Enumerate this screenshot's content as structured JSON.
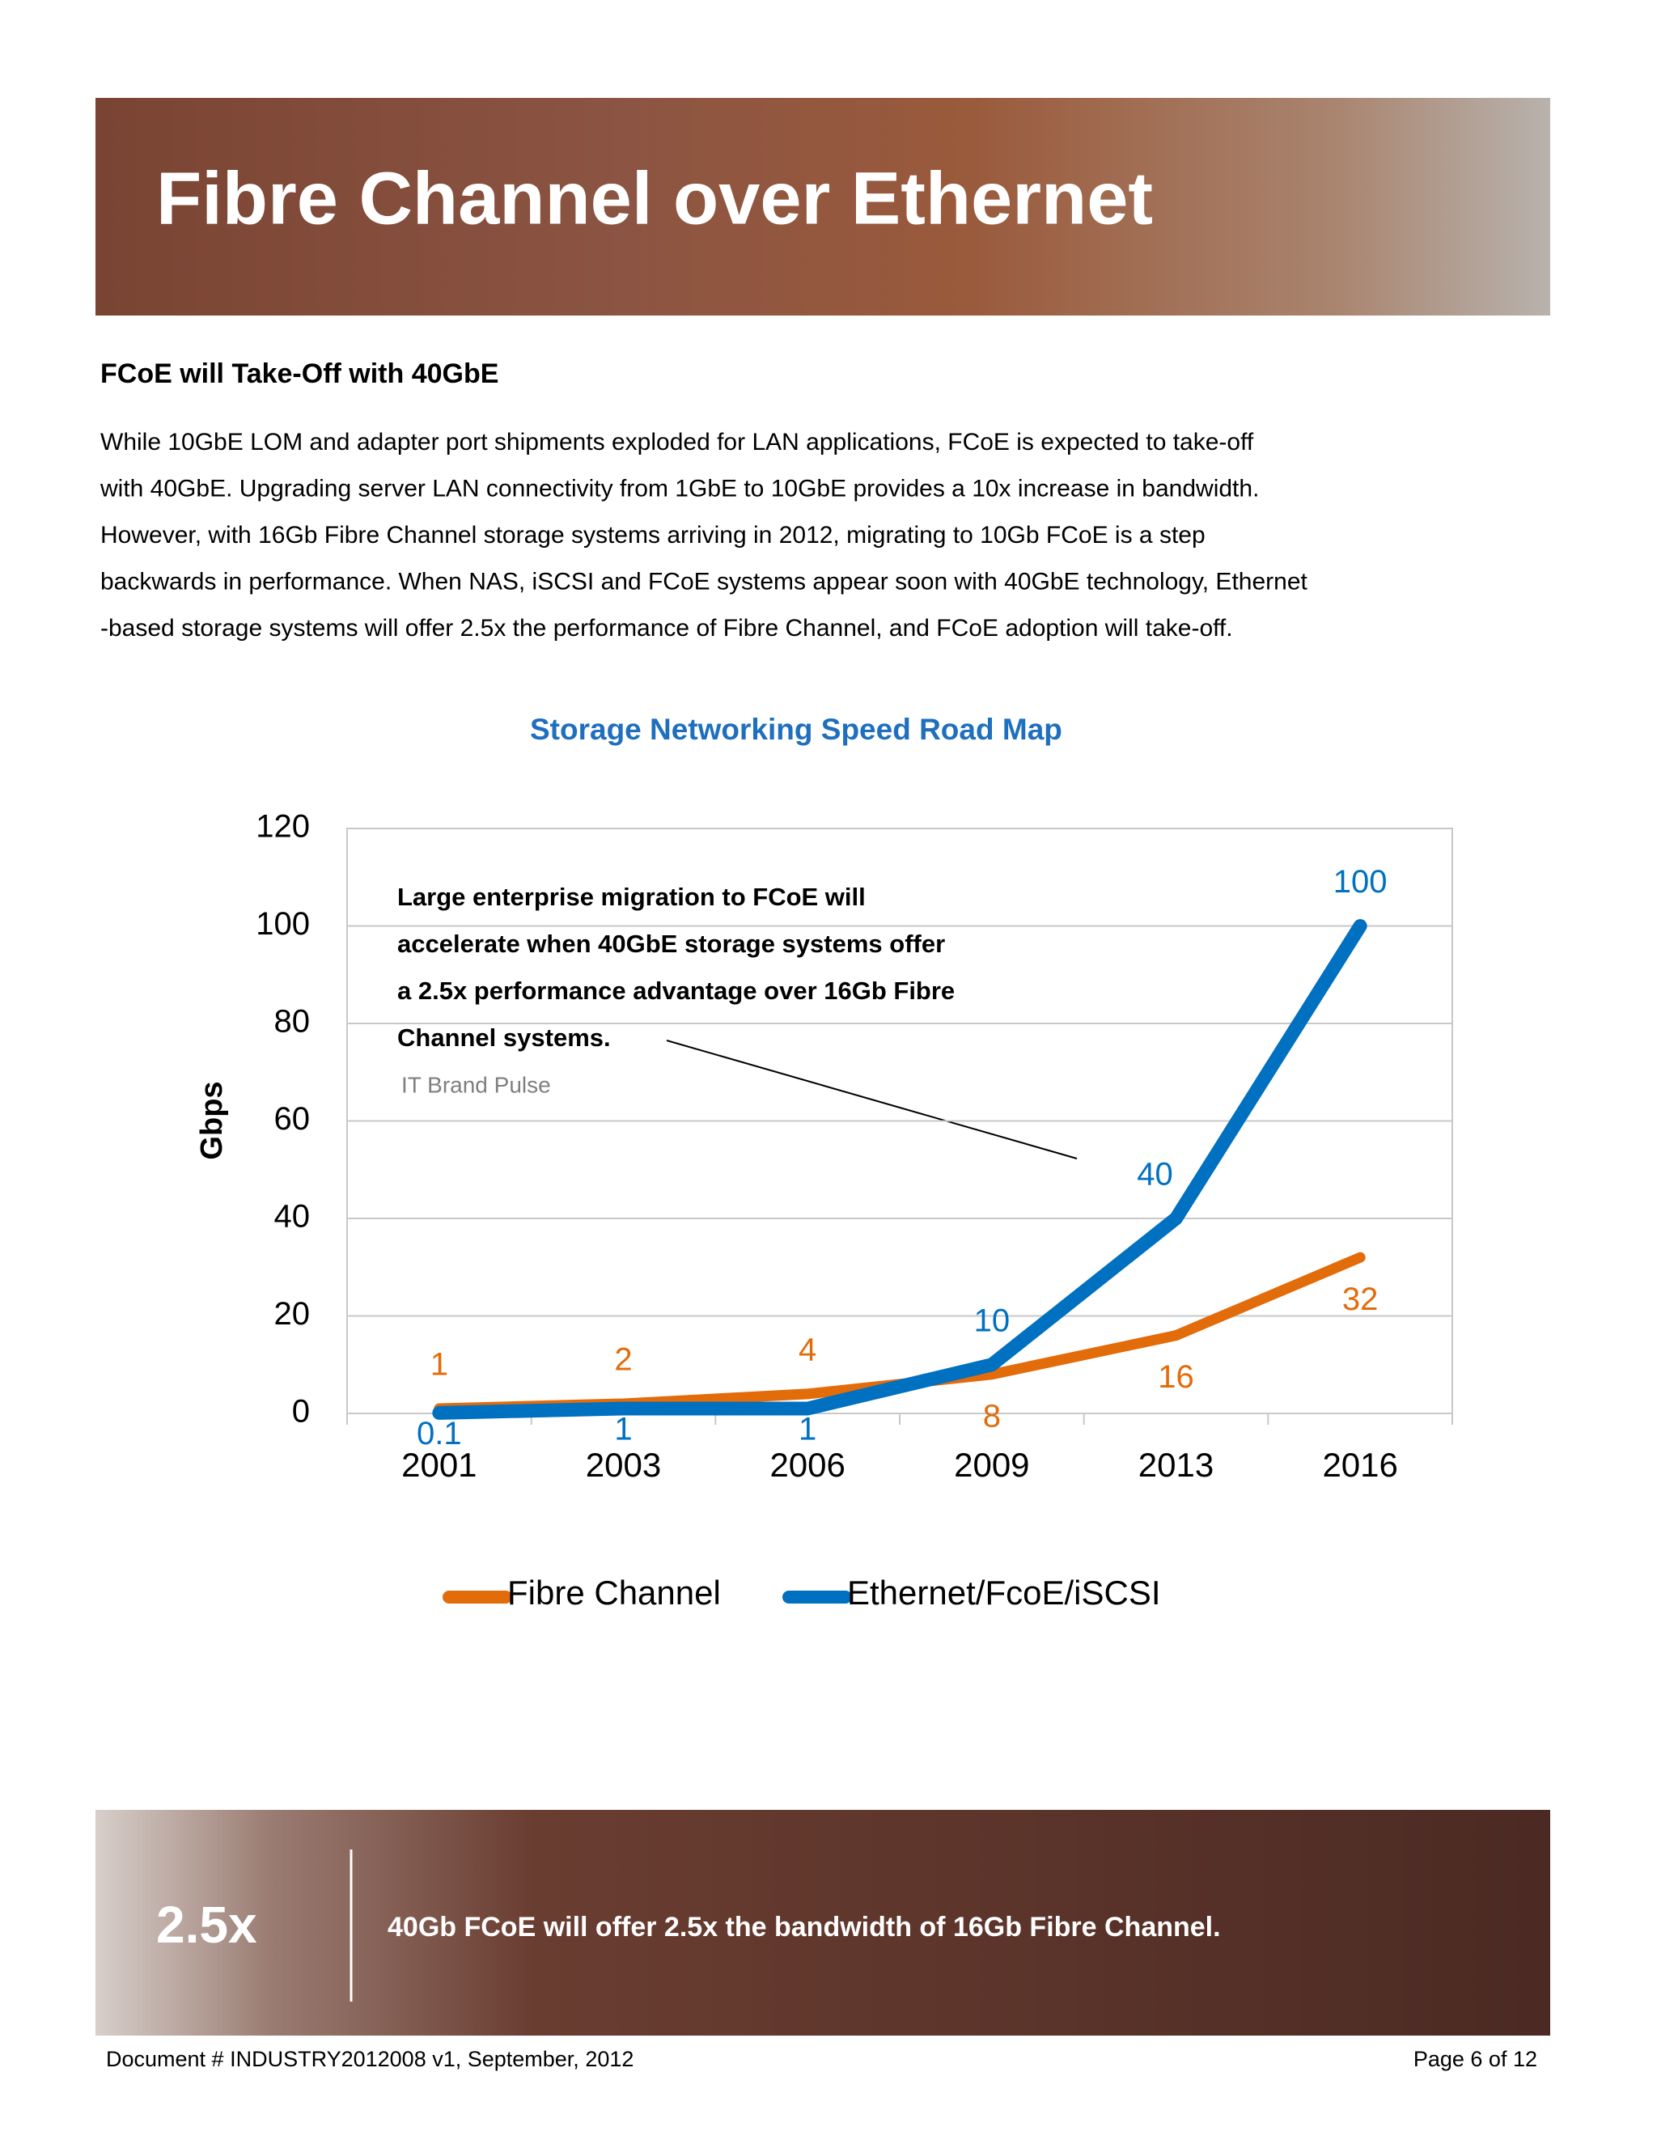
{
  "header": {
    "title": "Fibre Channel over Ethernet"
  },
  "section": {
    "heading": "FCoE will Take-Off with 40GbE",
    "paragraph_lines": [
      "While 10GbE LOM and adapter port shipments exploded for LAN applications, FCoE is expected to take-off",
      "with 40GbE. Upgrading server LAN connectivity from 1GbE to 10GbE provides a 10x increase in bandwidth.",
      "However, with 16Gb Fibre Channel storage systems arriving in 2012, migrating to 10Gb FCoE is a step",
      "backwards in performance. When NAS, iSCSI and FCoE systems appear soon with 40GbE technology, Ethernet",
      "-based storage systems will offer 2.5x the performance of Fibre Channel, and FCoE adoption will take-off."
    ]
  },
  "chart_data": {
    "type": "line",
    "title": "Storage Networking Speed Road Map",
    "y_label": "Gbps",
    "categories": [
      "2001",
      "2003",
      "2006",
      "2009",
      "2013",
      "2016"
    ],
    "series": [
      {
        "name": "Fibre Channel",
        "color": "#e36c0a",
        "values": [
          1,
          2,
          4,
          8,
          16,
          32
        ]
      },
      {
        "name": "Ethernet/FcoE/iSCSI",
        "color": "#0070c0",
        "values": [
          0.1,
          1,
          1,
          10,
          40,
          100
        ]
      }
    ],
    "ylim": [
      0,
      120
    ],
    "yticks": [
      0,
      20,
      40,
      60,
      80,
      100,
      120
    ],
    "grid": true,
    "legend": "bottom",
    "annotation": {
      "lines": [
        "Large enterprise migration to FCoE will",
        "accelerate when 40GbE storage systems  offer",
        "a 2.5x performance advantage over 16Gb Fibre",
        "Channel systems."
      ],
      "source": "IT Brand Pulse"
    }
  },
  "callout": {
    "figure": "2.5x",
    "text": "40Gb FCoE will offer 2.5x the bandwidth of 16Gb Fibre Channel."
  },
  "footer": {
    "document": "Document # INDUSTRY2012008 v1, September, 2012",
    "page": "Page  6 of 12"
  }
}
